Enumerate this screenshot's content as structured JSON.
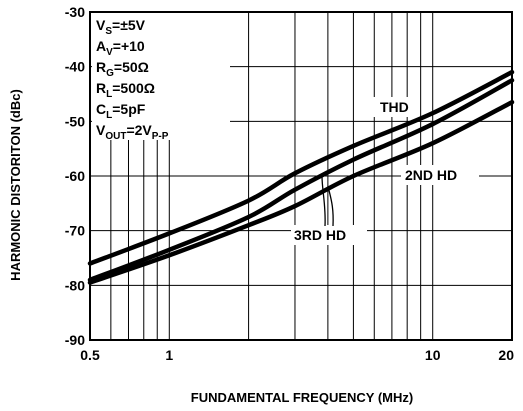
{
  "chart_data": {
    "type": "line",
    "xlabel": "FUNDAMENTAL FREQUENCY (MHz)",
    "ylabel": "HARMONIC DISTORITON (dBc)",
    "xscale": "log",
    "xlim": [
      0.5,
      20
    ],
    "ylim": [
      -90,
      -30
    ],
    "x_ticks": [
      0.5,
      1,
      10,
      20
    ],
    "x_tick_labels": [
      "0.5",
      "1",
      "10",
      "20"
    ],
    "y_ticks": [
      -90,
      -80,
      -70,
      -60,
      -50,
      -40,
      -30
    ],
    "y_tick_labels": [
      "-90",
      "-80",
      "-70",
      "-60",
      "-50",
      "-40",
      "-30"
    ],
    "grid": true,
    "conditions": [
      {
        "main": "V",
        "sub": "S",
        "rest": "=±5V"
      },
      {
        "main": "A",
        "sub": "V",
        "rest": "=+10"
      },
      {
        "main": "R",
        "sub": "G",
        "rest": "=50Ω"
      },
      {
        "main": "R",
        "sub": "L",
        "rest": "=500Ω"
      },
      {
        "main": "C",
        "sub": "L",
        "rest": "=5pF"
      },
      {
        "main": "V",
        "sub": "OUT",
        "rest": "=2V",
        "sub2": "P-P"
      }
    ],
    "series": [
      {
        "name": "THD",
        "x": [
          0.5,
          1,
          2,
          3,
          5,
          10,
          20
        ],
        "y": [
          -76,
          -70.5,
          -64.5,
          -59.5,
          -54.5,
          -48.5,
          -41
        ]
      },
      {
        "name": "2ND HD",
        "x": [
          0.5,
          1,
          2,
          3,
          5,
          10,
          20
        ],
        "y": [
          -79,
          -73.5,
          -67.5,
          -62.5,
          -57,
          -50.5,
          -42.5
        ]
      },
      {
        "name": "3RD HD",
        "x": [
          0.5,
          1,
          2,
          3,
          5,
          10,
          20
        ],
        "y": [
          -79.5,
          -74.5,
          -69,
          -65.5,
          -60,
          -54,
          -46.5
        ]
      }
    ]
  }
}
